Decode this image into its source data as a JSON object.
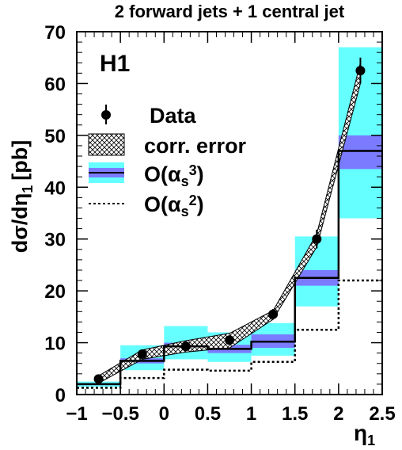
{
  "chart_data": {
    "type": "histogram",
    "title": "2 forward jets + 1 central jet",
    "experiment_label": "H1",
    "xlabel": "η",
    "xlabel_sub": "1",
    "ylabel": "dσ/dη",
    "ylabel_sub": "1",
    "ylabel_unit": "[pb]",
    "xlim": [
      -1,
      2.5
    ],
    "ylim": [
      0,
      70
    ],
    "x_ticks": [
      -1,
      -0.5,
      0,
      0.5,
      1,
      1.5,
      2,
      2.5
    ],
    "x_tick_labels": [
      "−1",
      "−0.5",
      "0",
      "0.5",
      "1",
      "1.5",
      "2",
      "2.5"
    ],
    "y_ticks": [
      0,
      10,
      20,
      30,
      40,
      50,
      60,
      70
    ],
    "y_tick_labels": [
      "0",
      "10",
      "20",
      "30",
      "40",
      "50",
      "60",
      "70"
    ],
    "bin_edges": [
      -1,
      -0.5,
      0,
      0.5,
      1,
      1.5,
      2,
      2.5
    ],
    "legend": {
      "placement": "upper-left",
      "entries": [
        {
          "key": "data",
          "label": "Data"
        },
        {
          "key": "corr",
          "label": "corr. error"
        },
        {
          "key": "nlo",
          "label_main": "O(α",
          "label_sub": "s",
          "label_sup": "3",
          "label_close": ")"
        },
        {
          "key": "lo",
          "label_main": "O(α",
          "label_sub": "s",
          "label_sup": "2",
          "label_close": ")"
        }
      ]
    },
    "series": [
      {
        "name": "Data",
        "x": [
          -0.75,
          -0.25,
          0.25,
          0.75,
          1.25,
          1.75,
          2.25
        ],
        "y": [
          3.0,
          7.8,
          9.3,
          10.5,
          15.5,
          30.0,
          62.5
        ],
        "yerr": [
          0.5,
          0.7,
          0.8,
          0.8,
          1.0,
          1.8,
          2.5
        ],
        "corr_err_low": [
          2.2,
          6.8,
          8.2,
          9.0,
          14.5,
          28.5,
          60.0
        ],
        "corr_err_high": [
          3.6,
          8.6,
          10.4,
          11.8,
          16.2,
          31.0,
          64.0
        ]
      },
      {
        "name": "O(αs3)",
        "values": [
          2.0,
          6.5,
          9.3,
          8.8,
          10.2,
          22.5,
          47.0
        ],
        "band_low": [
          1.5,
          4.7,
          6.8,
          6.3,
          7.5,
          17.0,
          34.0
        ],
        "band_high": [
          2.5,
          9.5,
          13.2,
          12.0,
          13.8,
          30.5,
          67.0
        ],
        "inner_low": [
          1.8,
          6.0,
          8.6,
          8.0,
          9.0,
          21.0,
          43.5
        ],
        "inner_high": [
          2.2,
          7.0,
          10.0,
          9.6,
          11.6,
          24.0,
          50.0
        ]
      },
      {
        "name": "O(αs2)",
        "values": [
          1.3,
          3.2,
          4.8,
          4.6,
          6.3,
          12.5,
          22.0
        ]
      }
    ],
    "colors": {
      "band_outer": "#66ffff",
      "band_inner": "#7b7bff",
      "line": "#000000",
      "background": "#ffffff"
    }
  }
}
